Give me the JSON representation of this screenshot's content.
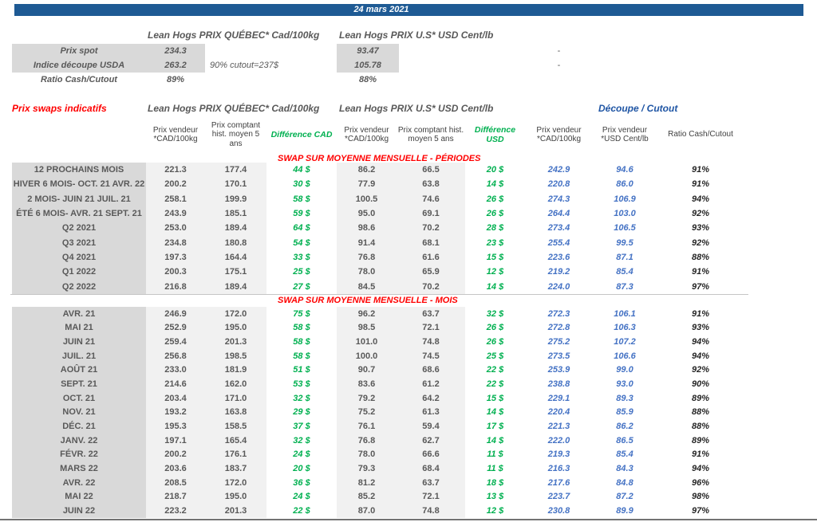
{
  "titlebar": {
    "date": "24 mars 2021"
  },
  "colors": {
    "date_bar_blue": "#1E5A94",
    "section_red": "#FF0000",
    "difference_green": "#00B050",
    "cutout_value_blue": "#4472C4",
    "cutout_header_blue": "#1F55A4",
    "label_cell_gray": "#D9D9D9",
    "value_cell_gray": "#F1F1F1",
    "text_gray": "#595959"
  },
  "spot": {
    "quebec_header": "Lean Hogs PRIX QUÉBEC* Cad/100kg",
    "us_header": "Lean Hogs PRIX U.S* USD Cent/lb",
    "note": "90% cutout=237$",
    "rows": [
      {
        "label": "Prix spot",
        "qc": "234.3",
        "us": "93.47",
        "dash": "-"
      },
      {
        "label": "Indice découpe USDA",
        "qc": "263.2",
        "us": "105.78",
        "dash": "-"
      },
      {
        "label": "Ratio Cash/Cutout",
        "qc": "89%",
        "us": "88%",
        "dash": ""
      }
    ]
  },
  "swaps": {
    "title": "Prix swaps indicatifs",
    "group_quebec": "Lean Hogs PRIX QUÉBEC* Cad/100kg",
    "group_us": "Lean Hogs PRIX U.S* USD Cent/lb",
    "group_cutout": "Découpe / Cutout",
    "columns": [
      "Prix vendeur *CAD/100kg",
      "Prix comptant hist. moyen 5 ans",
      "Différence CAD",
      "Prix vendeur *CAD/100kg",
      "Prix comptant hist. moyen 5 ans",
      "Différence USD",
      "Prix vendeur *CAD/100kg",
      "Prix vendeur *USD Cent/lb",
      "Ratio Cash/Cutout"
    ],
    "sections": [
      {
        "banner": "SWAP SUR MOYENNE MENSUELLE - PÉRIODES",
        "rows": [
          [
            "12 PROCHAINS MOIS",
            "221.3",
            "177.4",
            "44 $",
            "86.2",
            "66.5",
            "20 $",
            "242.9",
            "94.6",
            "91%"
          ],
          [
            "HIVER 6 MOIS- OCT. 21 AVR. 22",
            "200.2",
            "170.1",
            "30 $",
            "77.9",
            "63.8",
            "14 $",
            "220.8",
            "86.0",
            "91%"
          ],
          [
            "2 MOIS- JUIN 21 JUIL. 21",
            "258.1",
            "199.9",
            "58 $",
            "100.5",
            "74.6",
            "26 $",
            "274.3",
            "106.9",
            "94%"
          ],
          [
            "ÉTÉ 6 MOIS- AVR. 21 SEPT. 21",
            "243.9",
            "185.1",
            "59 $",
            "95.0",
            "69.1",
            "26 $",
            "264.4",
            "103.0",
            "92%"
          ],
          [
            "Q2 2021",
            "253.0",
            "189.4",
            "64 $",
            "98.6",
            "70.2",
            "28 $",
            "273.4",
            "106.5",
            "93%"
          ],
          [
            "Q3 2021",
            "234.8",
            "180.8",
            "54 $",
            "91.4",
            "68.1",
            "23 $",
            "255.4",
            "99.5",
            "92%"
          ],
          [
            "Q4 2021",
            "197.3",
            "164.4",
            "33 $",
            "76.8",
            "61.6",
            "15 $",
            "223.6",
            "87.1",
            "88%"
          ],
          [
            "Q1 2022",
            "200.3",
            "175.1",
            "25 $",
            "78.0",
            "65.9",
            "12 $",
            "219.2",
            "85.4",
            "91%"
          ],
          [
            "Q2 2022",
            "216.8",
            "189.4",
            "27 $",
            "84.5",
            "70.2",
            "14 $",
            "224.0",
            "87.3",
            "97%"
          ]
        ]
      },
      {
        "banner": "SWAP SUR MOYENNE MENSUELLE - MOIS",
        "rows": [
          [
            "AVR. 21",
            "246.9",
            "172.0",
            "75 $",
            "96.2",
            "63.7",
            "32 $",
            "272.3",
            "106.1",
            "91%"
          ],
          [
            "MAI 21",
            "252.9",
            "195.0",
            "58 $",
            "98.5",
            "72.1",
            "26 $",
            "272.8",
            "106.3",
            "93%"
          ],
          [
            "JUIN 21",
            "259.4",
            "201.3",
            "58 $",
            "101.0",
            "74.8",
            "26 $",
            "275.2",
            "107.2",
            "94%"
          ],
          [
            "JUIL. 21",
            "256.8",
            "198.5",
            "58 $",
            "100.0",
            "74.5",
            "25 $",
            "273.5",
            "106.6",
            "94%"
          ],
          [
            "AOÛT 21",
            "233.0",
            "181.9",
            "51 $",
            "90.7",
            "68.6",
            "22 $",
            "253.9",
            "99.0",
            "92%"
          ],
          [
            "SEPT. 21",
            "214.6",
            "162.0",
            "53 $",
            "83.6",
            "61.2",
            "22 $",
            "238.8",
            "93.0",
            "90%"
          ],
          [
            "OCT. 21",
            "203.4",
            "171.0",
            "32 $",
            "79.2",
            "64.2",
            "15 $",
            "229.1",
            "89.3",
            "89%"
          ],
          [
            "NOV. 21",
            "193.2",
            "163.8",
            "29 $",
            "75.2",
            "61.3",
            "14 $",
            "220.4",
            "85.9",
            "88%"
          ],
          [
            "DÉC. 21",
            "195.3",
            "158.5",
            "37 $",
            "76.1",
            "59.4",
            "17 $",
            "221.3",
            "86.2",
            "88%"
          ],
          [
            "JANV. 22",
            "197.1",
            "165.4",
            "32 $",
            "76.8",
            "62.7",
            "14 $",
            "222.0",
            "86.5",
            "89%"
          ],
          [
            "FÉVR. 22",
            "200.2",
            "176.1",
            "24 $",
            "78.0",
            "66.6",
            "11 $",
            "219.3",
            "85.4",
            "91%"
          ],
          [
            "MARS 22",
            "203.6",
            "183.7",
            "20 $",
            "79.3",
            "68.4",
            "11 $",
            "216.3",
            "84.3",
            "94%"
          ],
          [
            "AVR. 22",
            "208.5",
            "172.0",
            "36 $",
            "81.2",
            "63.7",
            "18 $",
            "217.6",
            "84.8",
            "96%"
          ],
          [
            "MAI 22",
            "218.7",
            "195.0",
            "24 $",
            "85.2",
            "72.1",
            "13 $",
            "223.7",
            "87.2",
            "98%"
          ],
          [
            "JUIN 22",
            "223.2",
            "201.3",
            "22 $",
            "87.0",
            "74.8",
            "12 $",
            "230.8",
            "89.9",
            "97%"
          ]
        ]
      }
    ]
  }
}
